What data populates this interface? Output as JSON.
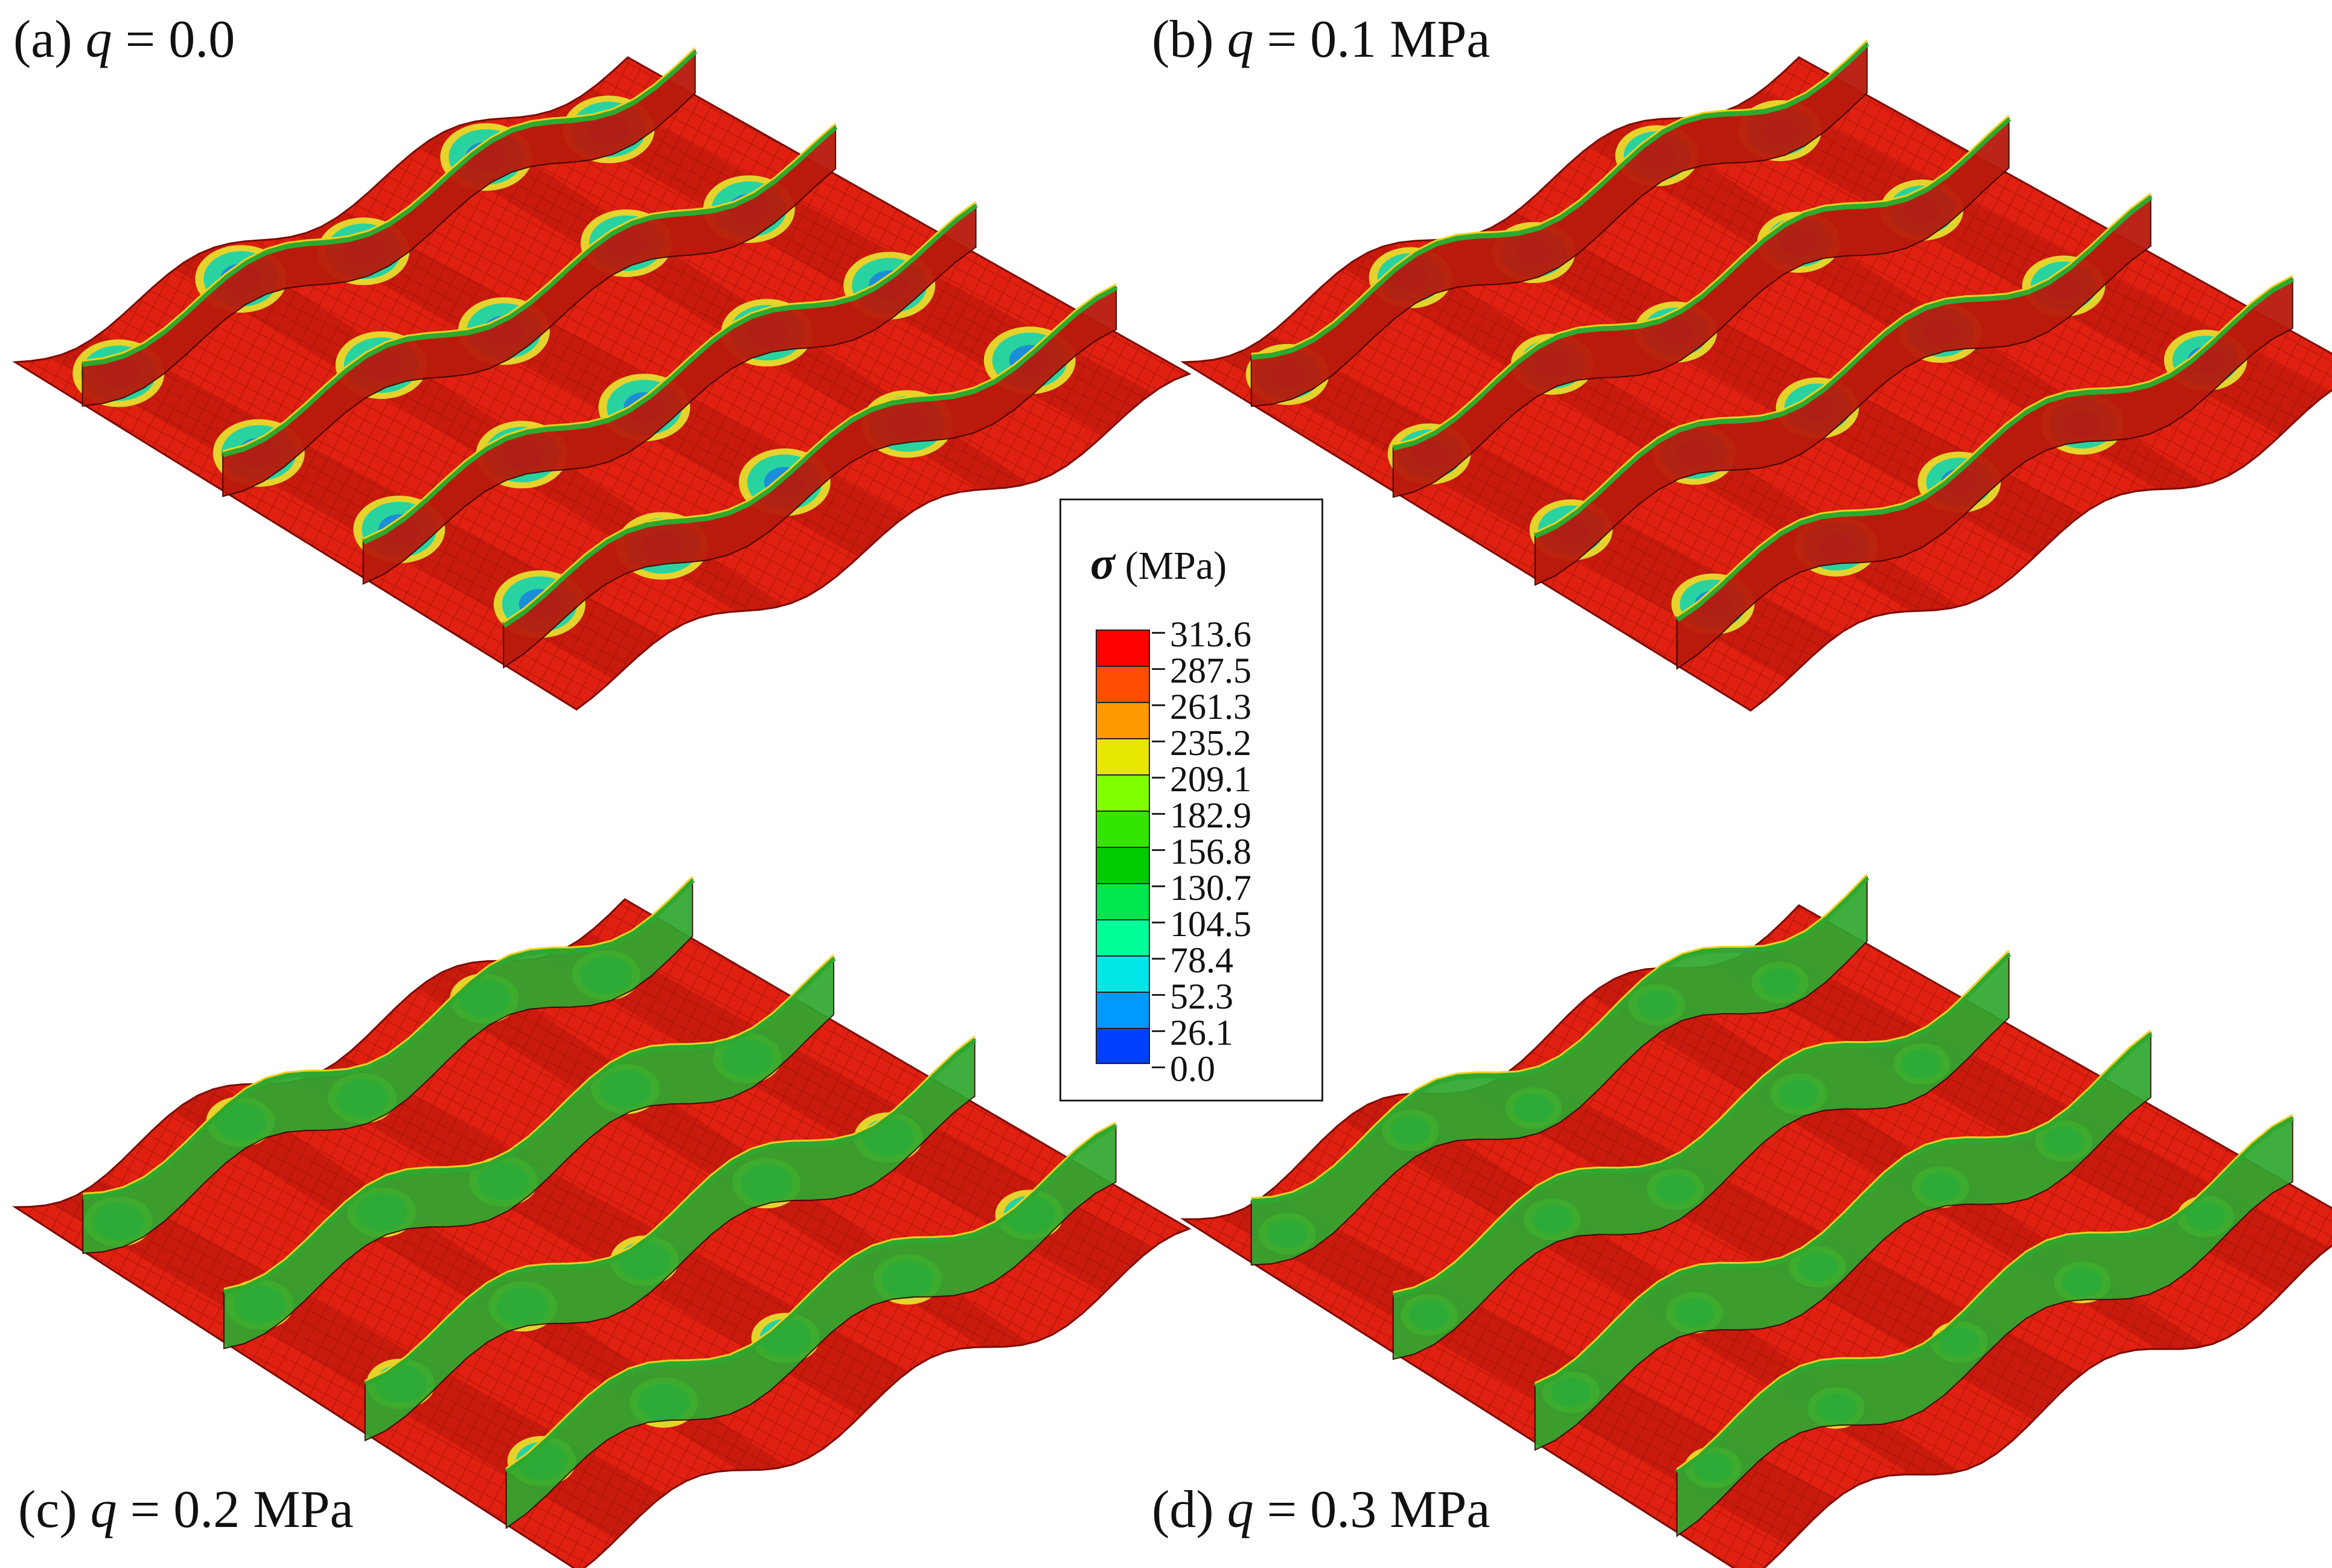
{
  "panels": [
    {
      "id": "a",
      "prefix": "(a) ",
      "var": "q",
      "rest": " = 0.0"
    },
    {
      "id": "b",
      "prefix": "(b) ",
      "var": "q",
      "rest": " = 0.1 MPa"
    },
    {
      "id": "c",
      "prefix": "(c) ",
      "var": "q",
      "rest": " = 0.2 MPa"
    },
    {
      "id": "d",
      "prefix": "(d) ",
      "var": "q",
      "rest": " = 0.3 MPa"
    }
  ],
  "legend": {
    "symbol": "σ",
    "unit": " (MPa)",
    "values": [
      "313.6",
      "287.5",
      "261.3",
      "235.2",
      "209.1",
      "182.9",
      "156.8",
      "130.7",
      "104.5",
      "78.4",
      "52.3",
      "26.1",
      "0.0"
    ],
    "colors": [
      "#ff0000",
      "#ff4d00",
      "#ff9900",
      "#e6e600",
      "#80ff00",
      "#33e600",
      "#00cc00",
      "#00e64d",
      "#00ff99",
      "#00e6e6",
      "#0099ff",
      "#0040ff",
      "#0000ff"
    ]
  },
  "colors": {
    "plate": "#e02010",
    "mesh": "#5a0a05",
    "stiffener": "#2fa82f",
    "stiffener_edge": "#f0d020",
    "hot_spot_low": "#1a8fd8",
    "hot_spot_mid": "#29d3a0",
    "hot_spot_ring": "#e8e830"
  }
}
